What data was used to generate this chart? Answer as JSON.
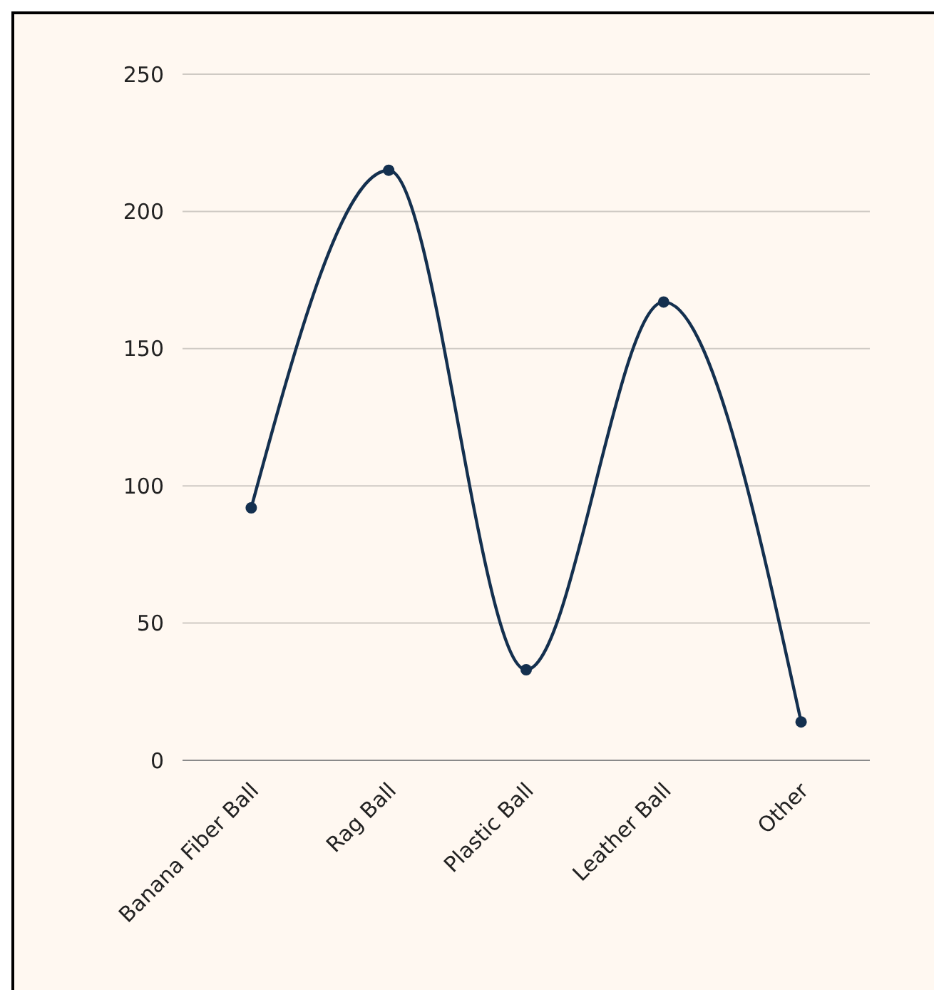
{
  "chart_data": {
    "type": "line",
    "categories": [
      "Banana Fiber Ball",
      "Rag Ball",
      "Plastic Ball",
      "Leather Ball",
      "Other"
    ],
    "series": [
      {
        "color": "#14304f",
        "values": [
          92,
          215,
          33,
          167,
          14
        ]
      }
    ],
    "ylim": [
      0,
      250
    ],
    "yticks": [
      0,
      50,
      100,
      150,
      200,
      250
    ],
    "grid": "y",
    "marker": "circle",
    "line_style": "solid"
  }
}
